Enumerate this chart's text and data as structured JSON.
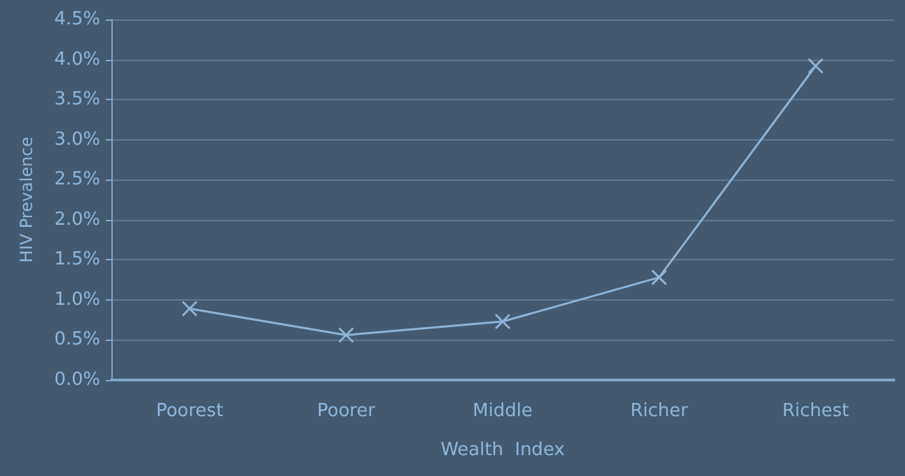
{
  "chart_data": {
    "type": "line",
    "xlabel": "Wealth  Index",
    "ylabel": "HIV Prevalence",
    "categories": [
      "Poorest",
      "Poorer",
      "Middle",
      "Richer",
      "Richest"
    ],
    "series": [
      {
        "color": "#8db3d6",
        "values": [
          0.89,
          0.56,
          0.73,
          1.28,
          3.92
        ]
      }
    ],
    "ylim": [
      0,
      4.5
    ],
    "yticks": [
      {
        "value": 0,
        "label": "0.0%"
      },
      {
        "value": 0.5,
        "label": "0.5%"
      },
      {
        "value": 1,
        "label": "1.0%"
      },
      {
        "value": 1.5,
        "label": "1.5%"
      },
      {
        "value": 2,
        "label": "2.0%"
      },
      {
        "value": 2.5,
        "label": "2.5%"
      },
      {
        "value": 3,
        "label": "3.0%"
      },
      {
        "value": 3.5,
        "label": "3.5%"
      },
      {
        "value": 4,
        "label": "4.0%"
      },
      {
        "value": 4.5,
        "label": "4.5%"
      }
    ],
    "grid": "y",
    "marker": "cross",
    "line_style": "solid"
  }
}
